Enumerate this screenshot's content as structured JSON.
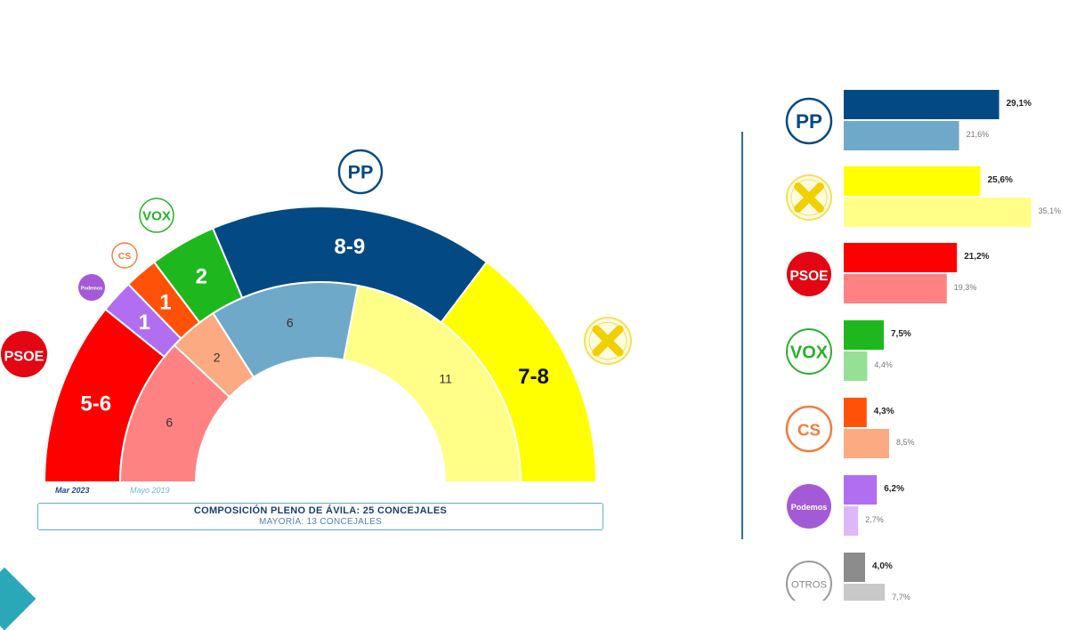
{
  "chart_data": [
    {
      "type": "pie",
      "subtype": "semicircle-parliament",
      "total_seats": 25,
      "rings": [
        {
          "name": "Mar 2023",
          "ring": "outer",
          "slices": [
            {
              "party": "PSOE",
              "label": "5-6",
              "seats": 5.5,
              "color": "#ff0000"
            },
            {
              "party": "Podemos",
              "label": "1",
              "seats": 1,
              "color": "#b16ef0"
            },
            {
              "party": "Cs",
              "label": "1",
              "seats": 1,
              "color": "#ff5208"
            },
            {
              "party": "Vox",
              "label": "2",
              "seats": 2,
              "color": "#1eb81e"
            },
            {
              "party": "PP",
              "label": "8-9",
              "seats": 8.5,
              "color": "#034a84"
            },
            {
              "party": "XAV",
              "label": "7-8",
              "seats": 7.5,
              "color": "#ffff00"
            }
          ]
        },
        {
          "name": "Mayo 2019",
          "ring": "inner",
          "slices": [
            {
              "party": "PSOE",
              "label": "6",
              "seats": 6,
              "color": "#ff8282"
            },
            {
              "party": "Cs",
              "label": "2",
              "seats": 2,
              "color": "#fbaa82"
            },
            {
              "party": "PP",
              "label": "6",
              "seats": 6,
              "color": "#6fa9c9"
            },
            {
              "party": "XAV",
              "label": "11",
              "seats": 11,
              "color": "#ffff88"
            }
          ]
        }
      ],
      "caption": "COMPOSICIÓN PLENO DE ÁVILA: 25 CONCEJALES",
      "subcaption": "MAYORÍA: 13 CONCEJALES"
    },
    {
      "type": "bar",
      "orientation": "horizontal",
      "categories": [
        "PP",
        "XAV",
        "PSOE",
        "Vox",
        "Cs",
        "Podemos",
        "Otros"
      ],
      "xlim": [
        0,
        40
      ],
      "series": [
        {
          "name": "Mar 2023",
          "values": [
            29.1,
            25.6,
            21.2,
            7.5,
            4.3,
            6.2,
            4.0
          ],
          "labels": [
            "29,1%",
            "25,6%",
            "21,2%",
            "7,5%",
            "4,3%",
            "6,2%",
            "4,0%"
          ],
          "colors": [
            "#034a84",
            "#ffff00",
            "#ff0000",
            "#1eb81e",
            "#ff5208",
            "#b16ef0",
            "#8c8c8c"
          ]
        },
        {
          "name": "Mayo 2019",
          "values": [
            21.6,
            35.1,
            19.3,
            4.4,
            8.5,
            2.7,
            7.7
          ],
          "labels": [
            "21,6%",
            "35,1%",
            "19,3%",
            "4,4%",
            "8,5%",
            "2,7%",
            "7,7%"
          ],
          "colors": [
            "#6fa9c9",
            "#ffff88",
            "#ff8282",
            "#95e095",
            "#fbaa82",
            "#dcb8f8",
            "#c8c8c8"
          ]
        }
      ]
    }
  ],
  "legend": {
    "current": "Mar 2023",
    "previous": "Mayo 2019"
  },
  "logos": {
    "pp": "PP",
    "vox": "VOX",
    "cs": "CS",
    "podemos": "Podemos",
    "psoe": "PSOE",
    "otros": "OTROS"
  },
  "colors": {
    "pp": "#034a84",
    "psoe": "#e30613",
    "vox": "#2bb02b",
    "cs": "#f47c3c",
    "podemos": "#7a2ea0",
    "xav_logo": "#f0d000",
    "divider": "#2a6ea6"
  }
}
